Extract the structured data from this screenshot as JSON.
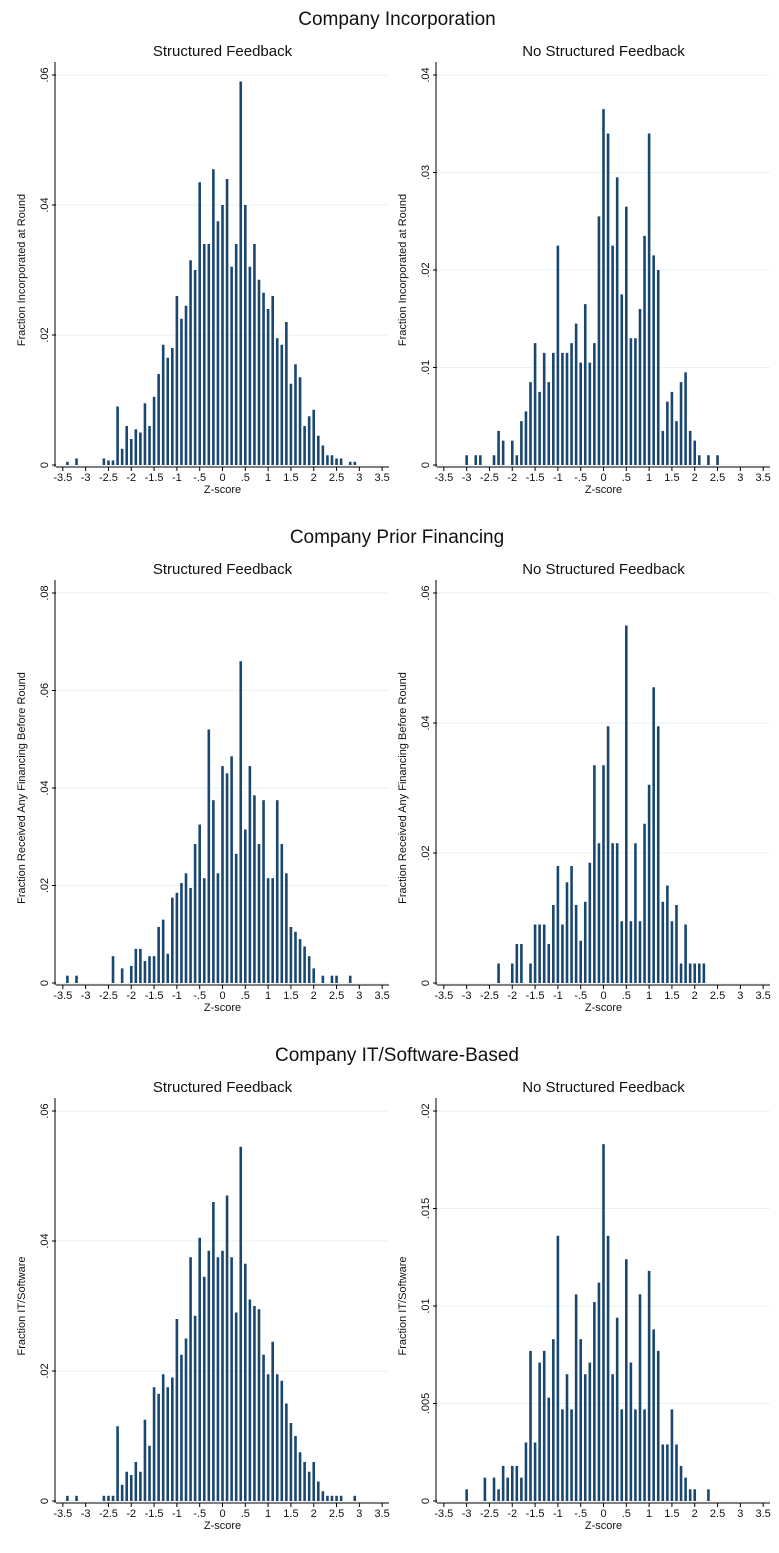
{
  "chart_data": [
    {
      "type": "bar",
      "suptitle": "Company Incorporation",
      "title": "Structured Feedback",
      "ylabel": "Fraction Incorporated at Round",
      "xlabel": "Z-score",
      "color": "#1a476f",
      "grid": true,
      "x": [
        -3.4,
        -3.2,
        -2.6,
        -2.5,
        -2.4,
        -2.3,
        -2.2,
        -2.1,
        -2.0,
        -1.9,
        -1.8,
        -1.7,
        -1.6,
        -1.5,
        -1.4,
        -1.3,
        -1.2,
        -1.1,
        -1.0,
        -0.9,
        -0.8,
        -0.7,
        -0.6,
        -0.5,
        -0.4,
        -0.3,
        -0.2,
        -0.1,
        0,
        0.1,
        0.2,
        0.3,
        0.4,
        0.5,
        0.6,
        0.7,
        0.8,
        0.9,
        1.0,
        1.1,
        1.2,
        1.3,
        1.4,
        1.5,
        1.6,
        1.7,
        1.8,
        1.9,
        2.0,
        2.1,
        2.2,
        2.3,
        2.4,
        2.5,
        2.6,
        2.8,
        2.9
      ],
      "values": [
        0.0005,
        0.001,
        0.001,
        0.0007,
        0.0007,
        0.009,
        0.0025,
        0.006,
        0.004,
        0.0055,
        0.005,
        0.0095,
        0.006,
        0.0105,
        0.014,
        0.0185,
        0.0165,
        0.018,
        0.026,
        0.0225,
        0.0245,
        0.0315,
        0.03,
        0.0435,
        0.034,
        0.034,
        0.0455,
        0.0375,
        0.04,
        0.044,
        0.0305,
        0.034,
        0.059,
        0.04,
        0.0305,
        0.034,
        0.0285,
        0.0265,
        0.024,
        0.026,
        0.0195,
        0.0185,
        0.022,
        0.0125,
        0.0155,
        0.0135,
        0.006,
        0.0075,
        0.0085,
        0.0045,
        0.003,
        0.0015,
        0.0015,
        0.001,
        0.001,
        0.0005,
        0.0005
      ],
      "xlim": [
        -3.65,
        3.65
      ],
      "xticks": [
        -3.5,
        -3,
        -2.5,
        -2,
        -1.5,
        -1,
        {
          "value": -0.5,
          "label": "-.5"
        },
        0,
        {
          "value": 0.5,
          "label": ".5"
        },
        1,
        1.5,
        2,
        2.5,
        3,
        3.5
      ],
      "ylim": [
        0,
        0.06
      ],
      "yticks": [
        0,
        {
          "value": 0.02,
          "label": ".02"
        },
        {
          "value": 0.04,
          "label": ".04"
        },
        {
          "value": 0.06,
          "label": ".06"
        }
      ]
    },
    {
      "type": "bar",
      "title": "No Structured Feedback",
      "ylabel": "Fraction Incorporated at Round",
      "xlabel": "Z-score",
      "color": "#1a476f",
      "grid": true,
      "x": [
        -3.0,
        -2.8,
        -2.7,
        -2.4,
        -2.3,
        -2.2,
        -2.0,
        -1.9,
        -1.8,
        -1.7,
        -1.6,
        -1.5,
        -1.4,
        -1.3,
        -1.2,
        -1.1,
        -1.0,
        -0.9,
        -0.8,
        -0.7,
        -0.6,
        -0.5,
        -0.4,
        -0.3,
        -0.2,
        -0.1,
        0,
        0.1,
        0.2,
        0.3,
        0.4,
        0.5,
        0.6,
        0.7,
        0.8,
        0.9,
        1.0,
        1.1,
        1.2,
        1.3,
        1.4,
        1.5,
        1.6,
        1.7,
        1.8,
        1.9,
        2.0,
        2.1,
        2.3,
        2.5
      ],
      "values": [
        0.001,
        0.001,
        0.001,
        0.001,
        0.0035,
        0.0025,
        0.0025,
        0.001,
        0.0045,
        0.0055,
        0.0085,
        0.0125,
        0.0075,
        0.0115,
        0.0085,
        0.0115,
        0.0225,
        0.0115,
        0.0115,
        0.0125,
        0.0145,
        0.0105,
        0.0165,
        0.0105,
        0.0125,
        0.0255,
        0.0365,
        0.034,
        0.0225,
        0.0295,
        0.0175,
        0.0265,
        0.013,
        0.013,
        0.016,
        0.0235,
        0.034,
        0.0215,
        0.02,
        0.0035,
        0.0065,
        0.0075,
        0.0045,
        0.0085,
        0.0095,
        0.0035,
        0.0025,
        0.001,
        0.001,
        0.001
      ],
      "xlim": [
        -3.65,
        3.65
      ],
      "xticks": [
        -3.5,
        -3,
        -2.5,
        -2,
        -1.5,
        -1,
        {
          "value": -0.5,
          "label": "-.5"
        },
        0,
        {
          "value": 0.5,
          "label": ".5"
        },
        1,
        1.5,
        2,
        2.5,
        3,
        3.5
      ],
      "ylim": [
        0,
        0.04
      ],
      "yticks": [
        0,
        {
          "value": 0.01,
          "label": ".01"
        },
        {
          "value": 0.02,
          "label": ".02"
        },
        {
          "value": 0.03,
          "label": ".03"
        },
        {
          "value": 0.04,
          "label": ".04"
        }
      ]
    },
    {
      "type": "bar",
      "suptitle": "Company Prior Financing",
      "title": "Structured Feedback",
      "ylabel": "Fraction Received Any Financing Before Round",
      "xlabel": "Z-score",
      "color": "#1a476f",
      "grid": true,
      "x": [
        -3.4,
        -3.2,
        -2.4,
        -2.2,
        -2.0,
        -1.9,
        -1.8,
        -1.7,
        -1.6,
        -1.5,
        -1.4,
        -1.3,
        -1.2,
        -1.1,
        -1.0,
        -0.9,
        -0.8,
        -0.7,
        -0.6,
        -0.5,
        -0.4,
        -0.3,
        -0.2,
        -0.1,
        0,
        0.1,
        0.2,
        0.3,
        0.4,
        0.5,
        0.6,
        0.7,
        0.8,
        0.9,
        1.0,
        1.1,
        1.2,
        1.3,
        1.4,
        1.5,
        1.6,
        1.7,
        1.8,
        1.9,
        2.0,
        2.2,
        2.4,
        2.5,
        2.8
      ],
      "values": [
        0.0015,
        0.0015,
        0.0055,
        0.003,
        0.0035,
        0.007,
        0.007,
        0.0045,
        0.0055,
        0.0055,
        0.0115,
        0.013,
        0.006,
        0.0175,
        0.0185,
        0.0205,
        0.0225,
        0.0195,
        0.0285,
        0.0325,
        0.0215,
        0.052,
        0.0375,
        0.0225,
        0.0445,
        0.043,
        0.0465,
        0.0265,
        0.066,
        0.0315,
        0.0445,
        0.0385,
        0.0285,
        0.0375,
        0.0215,
        0.0215,
        0.0375,
        0.0285,
        0.0225,
        0.0115,
        0.0105,
        0.009,
        0.0075,
        0.0055,
        0.003,
        0.0015,
        0.0015,
        0.0015,
        0.0015
      ],
      "xlim": [
        -3.65,
        3.65
      ],
      "xticks": [
        -3.5,
        -3,
        -2.5,
        -2,
        -1.5,
        -1,
        {
          "value": -0.5,
          "label": "-.5"
        },
        0,
        {
          "value": 0.5,
          "label": ".5"
        },
        1,
        1.5,
        2,
        2.5,
        3,
        3.5
      ],
      "ylim": [
        0,
        0.08
      ],
      "yticks": [
        0,
        {
          "value": 0.02,
          "label": ".02"
        },
        {
          "value": 0.04,
          "label": ".04"
        },
        {
          "value": 0.06,
          "label": ".06"
        },
        {
          "value": 0.08,
          "label": ".08"
        }
      ]
    },
    {
      "type": "bar",
      "title": "No Structured Feedback",
      "ylabel": "Fraction Received Any Financing Before Round",
      "xlabel": "Z-score",
      "color": "#1a476f",
      "grid": true,
      "x": [
        -2.3,
        -2.0,
        -1.9,
        -1.8,
        -1.6,
        -1.5,
        -1.4,
        -1.3,
        -1.2,
        -1.1,
        -1.0,
        -0.9,
        -0.8,
        -0.7,
        -0.6,
        -0.5,
        -0.4,
        -0.3,
        -0.2,
        -0.1,
        0,
        0.1,
        0.2,
        0.3,
        0.4,
        0.5,
        0.6,
        0.7,
        0.8,
        0.9,
        1.0,
        1.1,
        1.2,
        1.3,
        1.4,
        1.5,
        1.6,
        1.7,
        1.8,
        1.9,
        2.0,
        2.1,
        2.2
      ],
      "values": [
        0.003,
        0.003,
        0.006,
        0.006,
        0.003,
        0.009,
        0.009,
        0.009,
        0.006,
        0.012,
        0.018,
        0.009,
        0.0155,
        0.018,
        0.012,
        0.0065,
        0.0125,
        0.0185,
        0.0335,
        0.0215,
        0.0335,
        0.0395,
        0.0215,
        0.0215,
        0.0095,
        0.055,
        0.0095,
        0.0215,
        0.0095,
        0.0245,
        0.0305,
        0.0455,
        0.0395,
        0.0125,
        0.015,
        0.0095,
        0.012,
        0.003,
        0.009,
        0.003,
        0.003,
        0.003,
        0.003
      ],
      "xlim": [
        -3.65,
        3.65
      ],
      "xticks": [
        -3.5,
        -3,
        -2.5,
        -2,
        -1.5,
        -1,
        {
          "value": -0.5,
          "label": "-.5"
        },
        0,
        {
          "value": 0.5,
          "label": ".5"
        },
        1,
        1.5,
        2,
        2.5,
        3,
        3.5
      ],
      "ylim": [
        0,
        0.06
      ],
      "yticks": [
        0,
        {
          "value": 0.02,
          "label": ".02"
        },
        {
          "value": 0.04,
          "label": ".04"
        },
        {
          "value": 0.06,
          "label": ".06"
        }
      ]
    },
    {
      "type": "bar",
      "suptitle": "Company IT/Software-Based",
      "title": "Structured Feedback",
      "ylabel": "Fraction IT/Software",
      "xlabel": "Z-score",
      "color": "#1a476f",
      "grid": true,
      "x": [
        -3.4,
        -3.2,
        -2.6,
        -2.5,
        -2.4,
        -2.3,
        -2.2,
        -2.1,
        -2.0,
        -1.9,
        -1.8,
        -1.7,
        -1.6,
        -1.5,
        -1.4,
        -1.3,
        -1.2,
        -1.1,
        -1.0,
        -0.9,
        -0.8,
        -0.7,
        -0.6,
        -0.5,
        -0.4,
        -0.3,
        -0.2,
        -0.1,
        0,
        0.1,
        0.2,
        0.3,
        0.4,
        0.5,
        0.6,
        0.7,
        0.8,
        0.9,
        1.0,
        1.1,
        1.2,
        1.3,
        1.4,
        1.5,
        1.6,
        1.7,
        1.8,
        1.9,
        2.0,
        2.1,
        2.2,
        2.3,
        2.4,
        2.5,
        2.6,
        2.9
      ],
      "values": [
        0.0008,
        0.0008,
        0.0008,
        0.0008,
        0.0008,
        0.0115,
        0.0025,
        0.0045,
        0.004,
        0.006,
        0.0045,
        0.0125,
        0.0085,
        0.0175,
        0.0165,
        0.0195,
        0.0175,
        0.019,
        0.028,
        0.0225,
        0.025,
        0.0375,
        0.0285,
        0.0405,
        0.0345,
        0.0385,
        0.046,
        0.0375,
        0.0385,
        0.047,
        0.0375,
        0.029,
        0.0545,
        0.0365,
        0.031,
        0.03,
        0.0295,
        0.0225,
        0.0195,
        0.0245,
        0.0195,
        0.0185,
        0.015,
        0.012,
        0.01,
        0.0075,
        0.006,
        0.0045,
        0.006,
        0.003,
        0.0015,
        0.0008,
        0.0008,
        0.0008,
        0.0008,
        0.0008
      ],
      "xlim": [
        -3.65,
        3.65
      ],
      "xticks": [
        -3.5,
        -3,
        -2.5,
        -2,
        -1.5,
        -1,
        {
          "value": -0.5,
          "label": "-.5"
        },
        0,
        {
          "value": 0.5,
          "label": ".5"
        },
        1,
        1.5,
        2,
        2.5,
        3,
        3.5
      ],
      "ylim": [
        0,
        0.06
      ],
      "yticks": [
        0,
        {
          "value": 0.02,
          "label": ".02"
        },
        {
          "value": 0.04,
          "label": ".04"
        },
        {
          "value": 0.06,
          "label": ".06"
        }
      ]
    },
    {
      "type": "bar",
      "title": "No Structured Feedback",
      "ylabel": "Fraction IT/Software",
      "xlabel": "Z-score",
      "color": "#1a476f",
      "grid": true,
      "x": [
        -3.0,
        -2.6,
        -2.4,
        -2.3,
        -2.2,
        -2.1,
        -2.0,
        -1.9,
        -1.8,
        -1.7,
        -1.6,
        -1.5,
        -1.4,
        -1.3,
        -1.2,
        -1.1,
        -1.0,
        -0.9,
        -0.8,
        -0.7,
        -0.6,
        -0.5,
        -0.4,
        -0.3,
        -0.2,
        -0.1,
        0,
        0.1,
        0.2,
        0.3,
        0.4,
        0.5,
        0.6,
        0.7,
        0.8,
        0.9,
        1.0,
        1.1,
        1.2,
        1.3,
        1.4,
        1.5,
        1.6,
        1.7,
        1.8,
        1.9,
        2.0,
        2.3
      ],
      "values": [
        0.0006,
        0.0012,
        0.0012,
        0.0006,
        0.0018,
        0.0012,
        0.0018,
        0.0018,
        0.0012,
        0.003,
        0.0077,
        0.003,
        0.0071,
        0.0077,
        0.0053,
        0.0083,
        0.0136,
        0.0047,
        0.0065,
        0.0047,
        0.0106,
        0.0083,
        0.0065,
        0.0071,
        0.0102,
        0.0112,
        0.0183,
        0.0136,
        0.0065,
        0.0094,
        0.0047,
        0.0124,
        0.0071,
        0.0047,
        0.0106,
        0.0047,
        0.0118,
        0.0088,
        0.0077,
        0.0029,
        0.0029,
        0.0047,
        0.0029,
        0.0018,
        0.0012,
        0.0006,
        0.0006,
        0.0006
      ],
      "xlim": [
        -3.65,
        3.65
      ],
      "xticks": [
        -3.5,
        -3,
        -2.5,
        -2,
        -1.5,
        -1,
        {
          "value": -0.5,
          "label": "-.5"
        },
        0,
        {
          "value": 0.5,
          "label": ".5"
        },
        1,
        1.5,
        2,
        2.5,
        3,
        3.5
      ],
      "ylim": [
        0,
        0.02
      ],
      "yticks": [
        0,
        {
          "value": 0.005,
          "label": ".005"
        },
        {
          "value": 0.01,
          "label": ".01"
        },
        {
          "value": 0.015,
          "label": ".015"
        },
        {
          "value": 0.02,
          "label": ".02"
        }
      ]
    }
  ]
}
